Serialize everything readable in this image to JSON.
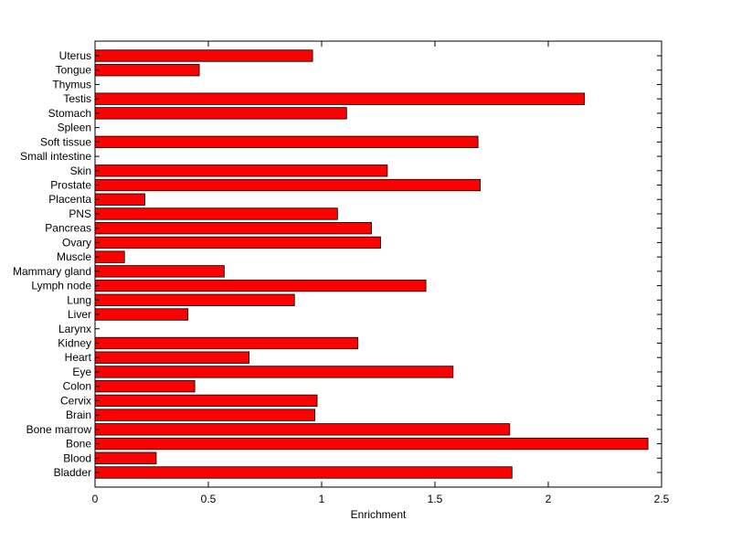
{
  "chart_data": {
    "type": "bar",
    "orientation": "horizontal",
    "xlabel": "Enrichment",
    "ylabel": "",
    "title": "",
    "xlim": [
      0,
      2.5
    ],
    "xticks": [
      0,
      0.5,
      1,
      1.5,
      2,
      2.5
    ],
    "xtick_labels": [
      "0",
      "0.5",
      "1",
      "1.5",
      "2",
      "2.5"
    ],
    "grid": false,
    "bar_color": "#ff0000",
    "categories": [
      "Uterus",
      "Tongue",
      "Thymus",
      "Testis",
      "Stomach",
      "Spleen",
      "Soft tissue",
      "Small intestine",
      "Skin",
      "Prostate",
      "Placenta",
      "PNS",
      "Pancreas",
      "Ovary",
      "Muscle",
      "Mammary gland",
      "Lymph node",
      "Lung",
      "Liver",
      "Larynx",
      "Kidney",
      "Heart",
      "Eye",
      "Colon",
      "Cervix",
      "Brain",
      "Bone marrow",
      "Bone",
      "Blood",
      "Bladder"
    ],
    "values": [
      0.96,
      0.46,
      0,
      2.16,
      1.11,
      0,
      1.69,
      0,
      1.29,
      1.7,
      0.22,
      1.07,
      1.22,
      1.26,
      0.13,
      0.57,
      1.46,
      0.88,
      0.41,
      0,
      1.16,
      0.68,
      1.58,
      0.44,
      0.98,
      0.97,
      1.83,
      2.44,
      0.27,
      1.84
    ]
  }
}
